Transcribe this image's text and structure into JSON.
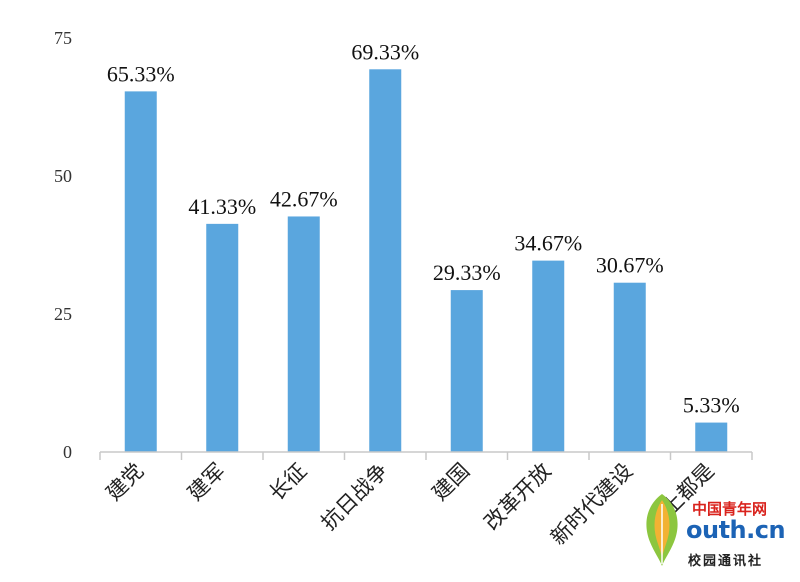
{
  "chart_data": {
    "type": "bar",
    "categories": [
      "建党",
      "建军",
      "长征",
      "抗日战争",
      "建国",
      "改革开放",
      "新时代建设",
      "以上都是"
    ],
    "values": [
      65.33,
      41.33,
      42.67,
      69.33,
      29.33,
      34.67,
      30.67,
      5.33
    ],
    "data_labels": [
      "65.33%",
      "41.33%",
      "42.67%",
      "69.33%",
      "29.33%",
      "34.67%",
      "30.67%",
      "5.33%"
    ],
    "yticks": [
      0,
      25,
      50,
      75
    ],
    "ylim": [
      0,
      75
    ],
    "bar_color": "#5aa6de",
    "axis_color": "#c8c8c8",
    "grid": false,
    "legend": "none",
    "title": "",
    "xlabel": "",
    "ylabel": ""
  },
  "watermark": {
    "line1": "中国青年网",
    "line2": "outh.cn",
    "line3": "校园通讯社"
  }
}
